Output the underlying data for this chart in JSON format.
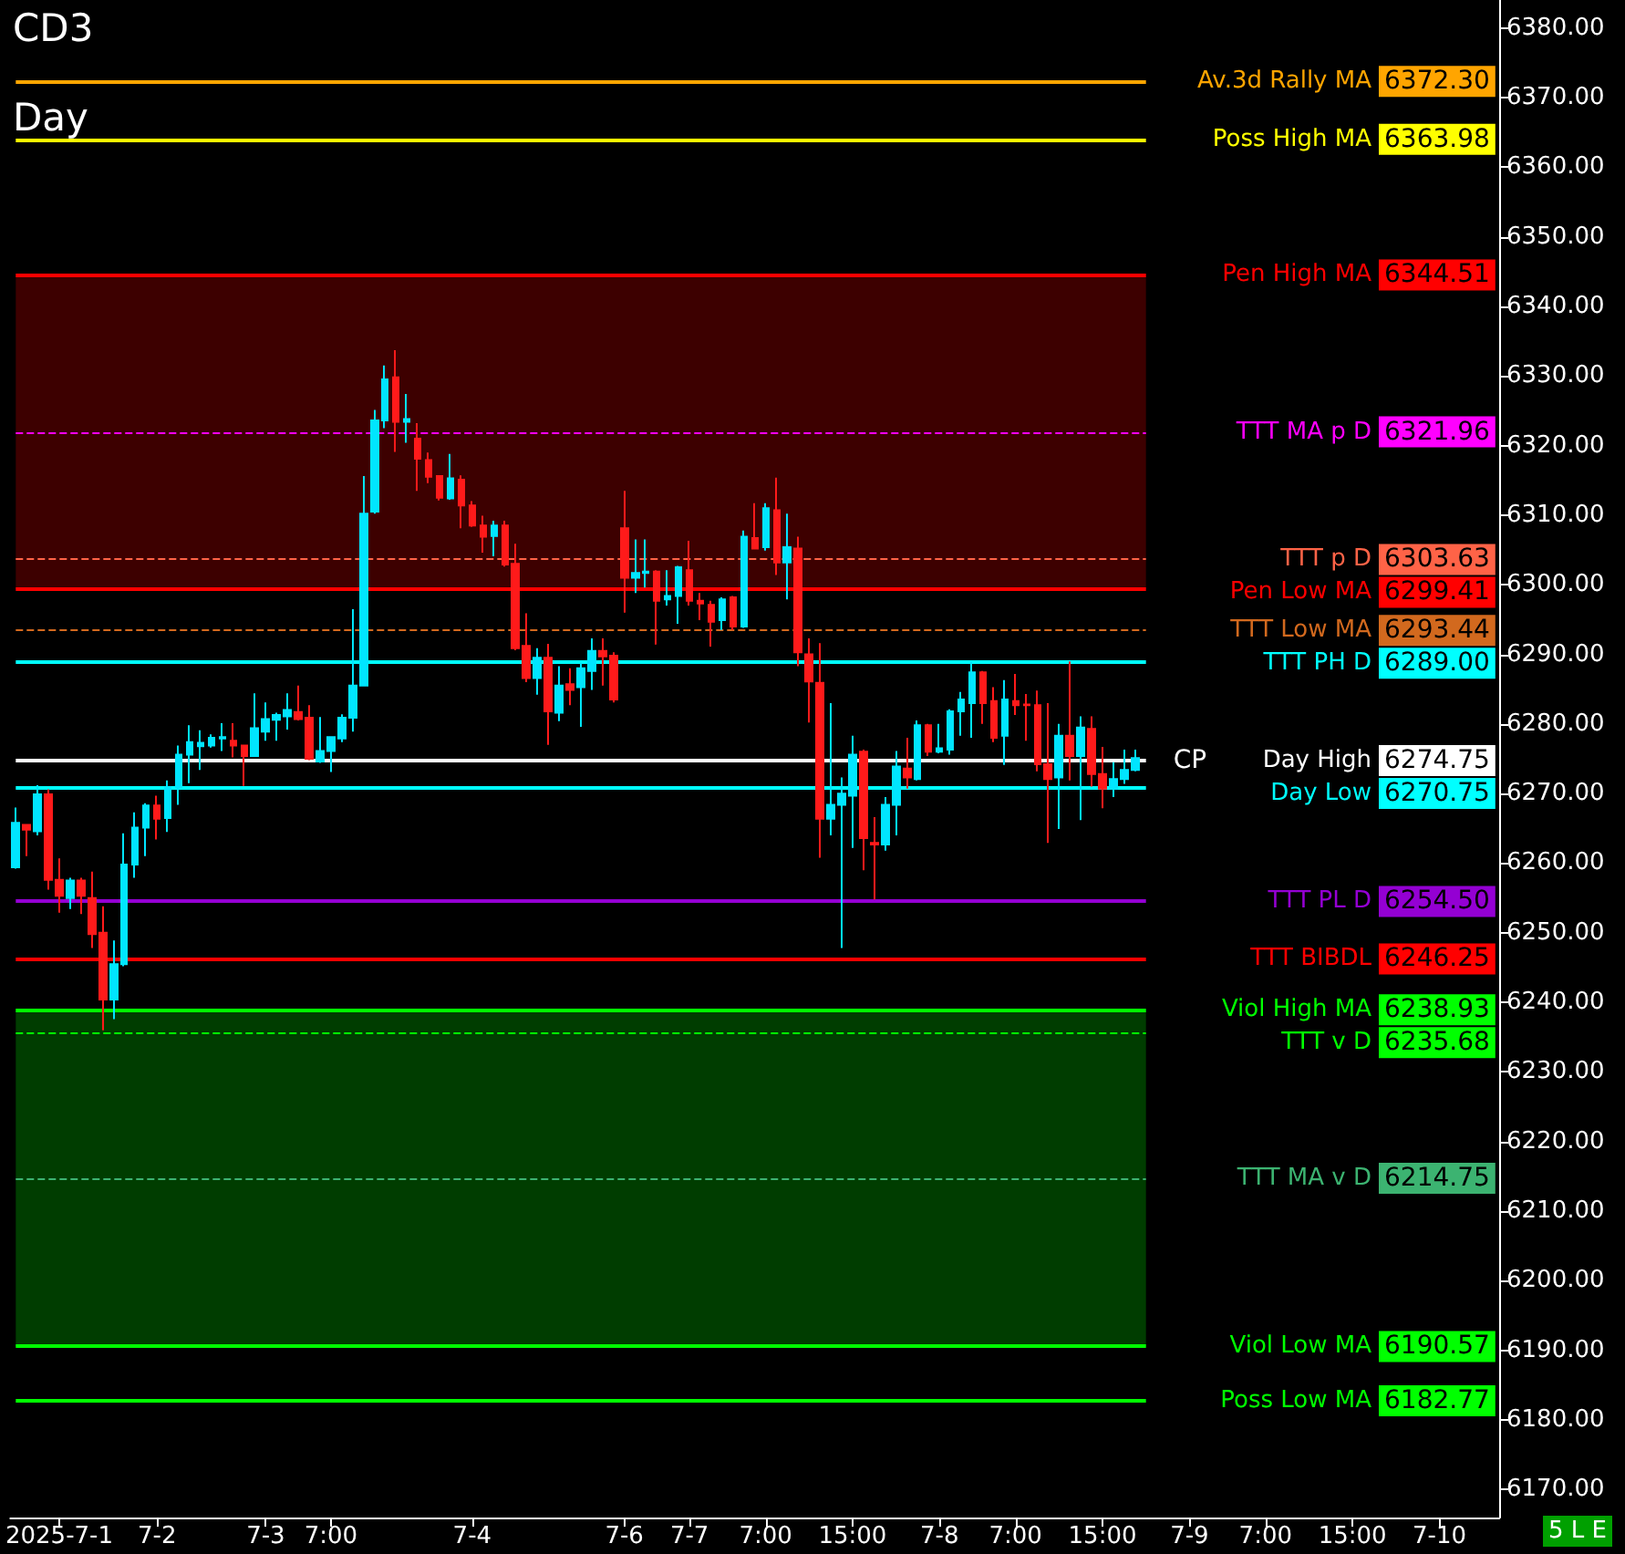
{
  "chart_data": {
    "type": "candlestick",
    "title": "CD3",
    "subtitle": "Day",
    "categories": [
      null,
      null,
      null,
      null,
      "2025-7-1",
      null,
      null,
      null,
      null,
      null,
      null,
      null,
      null,
      "7-2",
      null,
      null,
      null,
      null,
      null,
      null,
      null,
      null,
      null,
      "7-3",
      null,
      null,
      null,
      null,
      null,
      "7:00",
      null,
      null,
      null,
      null,
      null,
      null,
      null,
      null,
      null,
      null,
      null,
      null,
      "7-4",
      null,
      null,
      null,
      null,
      null,
      null,
      null,
      null,
      null,
      null,
      null,
      null,
      null,
      "7-6",
      null,
      null,
      null,
      null,
      null,
      "7-7",
      null,
      null,
      null,
      null,
      null,
      null,
      "7:00",
      null,
      null,
      null,
      null,
      null,
      null,
      null,
      "15:00",
      null,
      null,
      null,
      null,
      null,
      null,
      null,
      "7-8",
      null,
      null,
      null,
      null,
      null,
      null,
      "7:00",
      null,
      null,
      null,
      null,
      null,
      null,
      null,
      "15:00",
      null,
      null,
      null,
      null,
      null,
      null,
      null,
      "7-9",
      null,
      null,
      null,
      null,
      null,
      null,
      "7:00",
      null,
      null,
      null,
      null,
      null,
      null,
      null,
      "15:00",
      null,
      null,
      null,
      null,
      null,
      null,
      null,
      "7-10",
      null,
      null,
      null,
      null,
      null
    ],
    "ohlc": [
      [
        6259.4,
        6268.0,
        6259.2,
        6265.8
      ],
      [
        6265.5,
        6265.5,
        6261.0,
        6264.8
      ],
      [
        6264.6,
        6271.2,
        6264.0,
        6269.9
      ],
      [
        6269.9,
        6270.6,
        6256.2,
        6257.6
      ],
      [
        6257.6,
        6260.7,
        6252.9,
        6255.3
      ],
      [
        6255.0,
        6257.9,
        6253.4,
        6257.5
      ],
      [
        6257.5,
        6257.9,
        6252.7,
        6255.3
      ],
      [
        6255.0,
        6258.8,
        6247.8,
        6249.8
      ],
      [
        6250.0,
        6253.8,
        6236.0,
        6240.4
      ],
      [
        6240.4,
        6248.9,
        6237.6,
        6245.5
      ],
      [
        6245.5,
        6264.3,
        6245.2,
        6259.8
      ],
      [
        6259.8,
        6267.3,
        6257.9,
        6265.1
      ],
      [
        6265.1,
        6268.6,
        6261.0,
        6268.3
      ],
      [
        6268.3,
        6269.7,
        6263.4,
        6266.4
      ],
      [
        6266.5,
        6271.9,
        6264.5,
        6270.9
      ],
      [
        6270.9,
        6276.9,
        6268.4,
        6275.6
      ],
      [
        6275.6,
        6279.8,
        6271.5,
        6277.4
      ],
      [
        6276.8,
        6279.1,
        6273.4,
        6277.3
      ],
      [
        6276.9,
        6278.5,
        6276.6,
        6278.0
      ],
      [
        6277.9,
        6280.1,
        6276.1,
        6278.1
      ],
      [
        6277.6,
        6280.1,
        6275.2,
        6276.9
      ],
      [
        6276.9,
        6276.9,
        6271.1,
        6275.4
      ],
      [
        6275.4,
        6284.4,
        6275.4,
        6279.4
      ],
      [
        6278.9,
        6283.1,
        6277.6,
        6280.7
      ],
      [
        6280.6,
        6281.6,
        6277.6,
        6281.3
      ],
      [
        6281.1,
        6284.4,
        6279.2,
        6282.0
      ],
      [
        6281.7,
        6285.5,
        6280.5,
        6280.7
      ],
      [
        6280.9,
        6282.7,
        6274.8,
        6275.0
      ],
      [
        6274.6,
        6281.0,
        6274.4,
        6276.1
      ],
      [
        6276.1,
        6278.2,
        6273.1,
        6278.1
      ],
      [
        6277.9,
        6281.4,
        6277.4,
        6280.9
      ],
      [
        6280.9,
        6296.5,
        6278.9,
        6285.5
      ],
      [
        6285.5,
        6315.6,
        6285.5,
        6310.2
      ],
      [
        6310.5,
        6325.1,
        6310.2,
        6323.6
      ],
      [
        6323.6,
        6331.5,
        6322.5,
        6329.5
      ],
      [
        6329.8,
        6333.7,
        6319.1,
        6323.4
      ],
      [
        6323.4,
        6327.4,
        6320.4,
        6323.8
      ],
      [
        6321.0,
        6323.2,
        6313.5,
        6318.1
      ],
      [
        6317.9,
        6319.0,
        6314.6,
        6315.5
      ],
      [
        6315.6,
        6315.7,
        6312.1,
        6312.5
      ],
      [
        6312.4,
        6318.8,
        6312.2,
        6315.3
      ],
      [
        6315.1,
        6315.7,
        6308.1,
        6311.4
      ],
      [
        6311.4,
        6312.0,
        6308.3,
        6308.5
      ],
      [
        6308.5,
        6309.9,
        6304.6,
        6306.9
      ],
      [
        6307.0,
        6309.2,
        6304.1,
        6308.5
      ],
      [
        6308.5,
        6309.2,
        6302.6,
        6302.9
      ],
      [
        6303.0,
        6305.9,
        6290.6,
        6290.9
      ],
      [
        6291.2,
        6295.9,
        6286.0,
        6286.6
      ],
      [
        6286.6,
        6290.9,
        6284.2,
        6289.5
      ],
      [
        6289.5,
        6291.5,
        6277.0,
        6281.8
      ],
      [
        6281.6,
        6288.3,
        6280.4,
        6285.5
      ],
      [
        6285.7,
        6288.0,
        6282.7,
        6284.9
      ],
      [
        6285.3,
        6288.8,
        6279.6,
        6288.0
      ],
      [
        6287.6,
        6292.3,
        6284.9,
        6290.5
      ],
      [
        6290.5,
        6292.3,
        6285.5,
        6289.7
      ],
      [
        6289.8,
        6290.3,
        6283.1,
        6283.5
      ],
      [
        6308.1,
        6313.5,
        6296.0,
        6301.0
      ],
      [
        6301.0,
        6306.5,
        6298.8,
        6301.7
      ],
      [
        6301.7,
        6306.5,
        6299.6,
        6301.9
      ],
      [
        6301.9,
        6302.1,
        6291.4,
        6297.7
      ],
      [
        6297.9,
        6302.1,
        6297.0,
        6298.4
      ],
      [
        6298.4,
        6302.7,
        6294.4,
        6302.5
      ],
      [
        6302.1,
        6306.3,
        6297.0,
        6297.7
      ],
      [
        6297.7,
        6298.8,
        6294.9,
        6297.3
      ],
      [
        6297.1,
        6297.7,
        6291.1,
        6294.7
      ],
      [
        6294.9,
        6298.2,
        6293.5,
        6297.9
      ],
      [
        6298.2,
        6298.4,
        6293.5,
        6294.0
      ],
      [
        6294.0,
        6307.8,
        6293.8,
        6306.9
      ],
      [
        6306.7,
        6311.7,
        6305.2,
        6305.2
      ],
      [
        6305.4,
        6311.7,
        6304.9,
        6311.0
      ],
      [
        6310.7,
        6315.4,
        6301.4,
        6303.2
      ],
      [
        6303.2,
        6310.2,
        6297.9,
        6305.4
      ],
      [
        6305.2,
        6306.9,
        6288.3,
        6290.3
      ],
      [
        6290.0,
        6292.3,
        6280.2,
        6286.1
      ],
      [
        6285.9,
        6291.6,
        6260.8,
        6266.4
      ],
      [
        6266.4,
        6283.0,
        6264.0,
        6268.4
      ],
      [
        6268.4,
        6272.3,
        6247.8,
        6270.0
      ],
      [
        6269.7,
        6278.3,
        6262.2,
        6275.6
      ],
      [
        6276.0,
        6276.3,
        6259.0,
        6263.6
      ],
      [
        6262.9,
        6266.6,
        6254.8,
        6262.7
      ],
      [
        6262.7,
        6269.5,
        6261.8,
        6268.4
      ],
      [
        6268.4,
        6276.1,
        6264.0,
        6273.9
      ],
      [
        6273.6,
        6278.0,
        6270.7,
        6272.3
      ],
      [
        6272.1,
        6280.5,
        6271.9,
        6279.8
      ],
      [
        6279.8,
        6280.0,
        6275.4,
        6276.0
      ],
      [
        6276.0,
        6280.0,
        6275.8,
        6276.5
      ],
      [
        6276.3,
        6282.1,
        6275.6,
        6281.8
      ],
      [
        6281.8,
        6284.6,
        6278.3,
        6283.5
      ],
      [
        6283.0,
        6289.0,
        6278.0,
        6287.4
      ],
      [
        6287.4,
        6287.6,
        6280.0,
        6283.0
      ],
      [
        6283.3,
        6285.3,
        6277.4,
        6278.0
      ],
      [
        6278.3,
        6286.3,
        6274.1,
        6283.5
      ],
      [
        6283.3,
        6287.2,
        6281.3,
        6282.7
      ],
      [
        6282.8,
        6284.3,
        6277.6,
        6282.7
      ],
      [
        6282.7,
        6284.8,
        6273.2,
        6274.2
      ],
      [
        6274.2,
        6283.0,
        6262.9,
        6272.1
      ],
      [
        6272.3,
        6280.0,
        6264.9,
        6278.3
      ],
      [
        6278.3,
        6289.0,
        6271.9,
        6275.4
      ],
      [
        6275.4,
        6281.1,
        6266.2,
        6279.5
      ],
      [
        6279.3,
        6281.1,
        6271.0,
        6272.8
      ],
      [
        6272.8,
        6276.7,
        6267.9,
        6270.7
      ],
      [
        6270.7,
        6274.5,
        6269.5,
        6272.1
      ],
      [
        6272.1,
        6276.3,
        6271.4,
        6273.4
      ],
      [
        6273.4,
        6276.3,
        6273.2,
        6275.1
      ],
      null,
      null,
      null,
      null,
      null,
      null,
      null,
      null,
      null,
      null,
      null,
      null,
      null,
      null,
      null,
      null,
      null,
      null,
      null,
      null,
      null,
      null,
      null,
      null,
      null,
      null,
      null,
      null,
      null,
      null,
      null,
      null,
      null
    ],
    "colors": [
      "#00e5ff",
      "#ff1a1a",
      "#00e5ff",
      "#ff1a1a",
      "#ff1a1a",
      "#00e5ff",
      "#ff1a1a",
      "#ff1a1a",
      "#ff1a1a",
      "#00e5ff",
      "#00e5ff",
      "#00e5ff",
      "#00e5ff",
      "#ff1a1a",
      "#00e5ff",
      "#00e5ff",
      "#00e5ff",
      "#00e5ff",
      "#00e5ff",
      "#00e5ff",
      "#ff1a1a",
      "#ff1a1a",
      "#00e5ff",
      "#00e5ff",
      "#00e5ff",
      "#00e5ff",
      "#ff1a1a",
      "#ff1a1a",
      "#00e5ff",
      "#00e5ff",
      "#00e5ff",
      "#00e5ff",
      "#00e5ff",
      "#00e5ff",
      "#00e5ff",
      "#ff1a1a",
      "#00e5ff",
      "#ff1a1a",
      "#ff1a1a",
      "#ff1a1a",
      "#00e5ff",
      "#ff1a1a",
      "#ff1a1a",
      "#ff1a1a",
      "#00e5ff",
      "#ff1a1a",
      "#ff1a1a",
      "#ff1a1a",
      "#00e5ff",
      "#ff1a1a",
      "#00e5ff",
      "#ff1a1a",
      "#00e5ff",
      "#00e5ff",
      "#ff1a1a",
      "#ff1a1a",
      "#ff1a1a",
      "#00e5ff",
      "#00e5ff",
      "#ff1a1a",
      "#00e5ff",
      "#00e5ff",
      "#ff1a1a",
      "#ff1a1a",
      "#ff1a1a",
      "#00e5ff",
      "#ff1a1a",
      "#00e5ff",
      "#ff1a1a",
      "#00e5ff",
      "#ff1a1a",
      "#00e5ff",
      "#ff1a1a",
      "#ff1a1a",
      "#ff1a1a",
      "#00e5ff",
      "#00e5ff",
      "#00e5ff",
      "#ff1a1a",
      "#ff1a1a",
      "#00e5ff",
      "#00e5ff",
      "#ff1a1a",
      "#00e5ff",
      "#ff1a1a",
      "#00e5ff",
      "#00e5ff",
      "#00e5ff",
      "#00e5ff",
      "#ff1a1a",
      "#ff1a1a",
      "#00e5ff",
      "#ff1a1a",
      "#ff1a1a",
      "#ff1a1a",
      "#ff1a1a",
      "#00e5ff",
      "#ff1a1a",
      "#00e5ff",
      "#ff1a1a",
      "#ff1a1a",
      "#00e5ff",
      "#00e5ff",
      "#00e5ff",
      null,
      null,
      null,
      null,
      null,
      null,
      null,
      null,
      null,
      null,
      null,
      null,
      null,
      null,
      null,
      null,
      null,
      null,
      null,
      null,
      null,
      null,
      null,
      null,
      null,
      null,
      null,
      null,
      null,
      null,
      null,
      null,
      null
    ],
    "ylim": [
      6166,
      6384
    ],
    "yticks": [
      {
        "value": 6170,
        "label": "6170.00"
      },
      {
        "value": 6180,
        "label": "6180.00"
      },
      {
        "value": 6190,
        "label": "6190.00"
      },
      {
        "value": 6200,
        "label": "6200.00"
      },
      {
        "value": 6210,
        "label": "6210.00"
      },
      {
        "value": 6220,
        "label": "6220.00"
      },
      {
        "value": 6230,
        "label": "6230.00"
      },
      {
        "value": 6240,
        "label": "6240.00"
      },
      {
        "value": 6250,
        "label": "6250.00"
      },
      {
        "value": 6260,
        "label": "6260.00"
      },
      {
        "value": 6270,
        "label": "6270.00"
      },
      {
        "value": 6280,
        "label": "6280.00"
      },
      {
        "value": 6290,
        "label": "6290.00"
      },
      {
        "value": 6300,
        "label": "6300.00"
      },
      {
        "value": 6310,
        "label": "6310.00"
      },
      {
        "value": 6320,
        "label": "6320.00"
      },
      {
        "value": 6330,
        "label": "6330.00"
      },
      {
        "value": 6340,
        "label": "6340.00"
      },
      {
        "value": 6350,
        "label": "6350.00"
      },
      {
        "value": 6360,
        "label": "6360.00"
      },
      {
        "value": 6370,
        "label": "6370.00"
      },
      {
        "value": 6380,
        "label": "6380.00"
      }
    ],
    "bands": [
      {
        "axis": "y",
        "from": 6299.41,
        "to": 6344.51,
        "color": "#3d0000"
      },
      {
        "axis": "y",
        "from": 6190.57,
        "to": 6238.93,
        "color": "#003d00"
      }
    ],
    "ref_lines": [
      {
        "axis": "y",
        "value": 6372.3,
        "label": "Av.3d Rally MA",
        "color": "#ffa500",
        "line_style": "solid"
      },
      {
        "axis": "y",
        "value": 6363.98,
        "label": "Poss High MA",
        "color": "#ffff00",
        "line_style": "solid"
      },
      {
        "axis": "y",
        "value": 6344.51,
        "label": "Pen High MA",
        "color": "#ff0000",
        "line_style": "solid"
      },
      {
        "axis": "y",
        "value": 6321.96,
        "label": "TTT MA p D",
        "color": "#ff00ff",
        "line_style": "dashed"
      },
      {
        "axis": "y",
        "value": 6303.63,
        "label": "TTT p D",
        "color": "#ff6347",
        "line_style": "dashed"
      },
      {
        "axis": "y",
        "value": 6299.41,
        "label": "Pen Low MA",
        "color": "#ff0000",
        "line_style": "solid"
      },
      {
        "axis": "y",
        "value": 6293.44,
        "label": "TTT Low MA",
        "color": "#d2691e",
        "line_style": "dashed"
      },
      {
        "axis": "y",
        "value": 6289.0,
        "label": "TTT PH D",
        "color": "#00ffff",
        "line_style": "solid"
      },
      {
        "axis": "y",
        "value": 6274.75,
        "label": "Day High",
        "color": "#ffffff",
        "line_style": "solid"
      },
      {
        "axis": "y",
        "value": 6270.75,
        "label": "Day Low",
        "color": "#00ffff",
        "line_style": "solid"
      },
      {
        "axis": "y",
        "value": 6254.5,
        "label": "TTT PL D",
        "color": "#9400d3",
        "line_style": "solid"
      },
      {
        "axis": "y",
        "value": 6246.25,
        "label": "TTT BIBDL",
        "color": "#ff0000",
        "line_style": "solid"
      },
      {
        "axis": "y",
        "value": 6238.93,
        "label": "Viol High MA",
        "color": "#00ff00",
        "line_style": "solid"
      },
      {
        "axis": "y",
        "value": 6235.68,
        "label": "TTT v D",
        "color": "#00ff00",
        "line_style": "dashed"
      },
      {
        "axis": "y",
        "value": 6214.75,
        "label": "TTT MA v D",
        "color": "#3cb371",
        "line_style": "dashed"
      },
      {
        "axis": "y",
        "value": 6190.57,
        "label": "Viol Low MA",
        "color": "#00ff00",
        "line_style": "solid"
      },
      {
        "axis": "y",
        "value": 6182.77,
        "label": "Poss Low MA",
        "color": "#00ff00",
        "line_style": "solid"
      }
    ],
    "annotations": [
      "6372.30",
      "6363.98",
      "6344.51",
      "6321.96",
      "6303.63",
      "6299.41",
      "6293.44",
      "6289.00",
      "6274.75",
      "6270.75",
      "6254.50",
      "6246.25",
      "6238.93",
      "6235.68",
      "6214.75",
      "6190.57",
      "6182.77",
      {
        "text": "CP",
        "y": 6274.75
      },
      "5 L E"
    ]
  }
}
